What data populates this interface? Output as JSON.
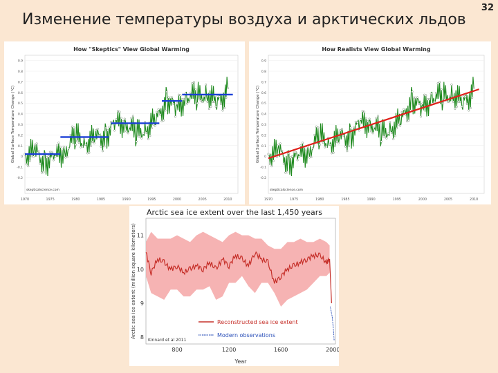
{
  "slide": {
    "title": "Изменение температуры воздуха и арктических льдов",
    "number": "32"
  },
  "colors": {
    "background": "#fbe7d2",
    "temperature_line": "#1f8a1f",
    "skeptic_steps": "#1a3fd6",
    "realist_trend": "#e0201a",
    "ice_line": "#c6302a",
    "ice_band": "#f4a6a6",
    "modern_obs": "#2a4fb8"
  },
  "chart_data": [
    {
      "type": "line",
      "title": "How \"Skeptics\" View Global Warming",
      "ylabel": "Global Surface Temperature Change (°C)",
      "xlim": [
        1970,
        2012
      ],
      "ylim": [
        -0.35,
        0.95
      ],
      "x_ticks": [
        "1970",
        "1975",
        "1980",
        "1985",
        "1990",
        "1995",
        "2000",
        "2005",
        "2010"
      ],
      "y_ticks": [
        "-0.2",
        "-0.1",
        "0",
        "0.1",
        "0.2",
        "0.3",
        "0.4",
        "0.5",
        "0.6",
        "0.7",
        "0.8",
        "0.9"
      ],
      "watermark": "skepticalscience.com",
      "x": [
        1970,
        1972,
        1974,
        1976,
        1978,
        1980,
        1982,
        1984,
        1986,
        1988,
        1990,
        1992,
        1994,
        1996,
        1998,
        2000,
        2002,
        2004,
        2006,
        2008,
        2010
      ],
      "series": [
        {
          "values": [
            0.02,
            0.03,
            -0.05,
            -0.02,
            0.07,
            0.18,
            0.14,
            0.16,
            0.2,
            0.3,
            0.32,
            0.2,
            0.28,
            0.33,
            0.55,
            0.42,
            0.58,
            0.55,
            0.6,
            0.48,
            0.64
          ]
        }
      ],
      "steps": [
        {
          "x0": 1970,
          "x1": 1977,
          "y": 0.02
        },
        {
          "x0": 1977,
          "x1": 1986.5,
          "y": 0.18
        },
        {
          "x0": 1987,
          "x1": 1996.5,
          "y": 0.31
        },
        {
          "x0": 1997,
          "x1": 2001,
          "y": 0.52
        },
        {
          "x0": 2001,
          "x1": 2011,
          "y": 0.58
        }
      ]
    },
    {
      "type": "line",
      "title": "How Realists View Global Warming",
      "ylabel": "Global Surface Temperature Change (°C)",
      "xlim": [
        1970,
        2012
      ],
      "ylim": [
        -0.35,
        0.95
      ],
      "x_ticks": [
        "1970",
        "1975",
        "1980",
        "1985",
        "1990",
        "1995",
        "2000",
        "2005",
        "2010"
      ],
      "y_ticks": [
        "-0.2",
        "-0.1",
        "0",
        "0.1",
        "0.2",
        "0.3",
        "0.4",
        "0.5",
        "0.6",
        "0.7",
        "0.8",
        "0.9"
      ],
      "watermark": "skepticalscience.com",
      "x": [
        1970,
        1972,
        1974,
        1976,
        1978,
        1980,
        1982,
        1984,
        1986,
        1988,
        1990,
        1992,
        1994,
        1996,
        1998,
        2000,
        2002,
        2004,
        2006,
        2008,
        2010
      ],
      "series": [
        {
          "values": [
            0.02,
            0.03,
            -0.05,
            -0.02,
            0.07,
            0.18,
            0.14,
            0.16,
            0.2,
            0.3,
            0.32,
            0.2,
            0.28,
            0.33,
            0.55,
            0.42,
            0.58,
            0.55,
            0.6,
            0.48,
            0.64
          ]
        }
      ],
      "trend": {
        "x0": 1970,
        "y0": -0.02,
        "x1": 2011,
        "y1": 0.63
      }
    },
    {
      "type": "line",
      "title": "Arctic sea ice extent over the last 1,450 years",
      "xlabel": "Year",
      "ylabel": "Arctic sea ice extent (million square kilometers)",
      "xlim": [
        560,
        2020
      ],
      "ylim": [
        7.8,
        11.5
      ],
      "x_ticks": [
        "800",
        "1200",
        "1600",
        "2000"
      ],
      "y_ticks": [
        "8",
        "9",
        "10",
        "11"
      ],
      "credit": "Kinnard et al 2011",
      "legend": [
        "Reconstructed sea ice extent",
        "Modern observations"
      ],
      "legend_position": "bottom-right",
      "x": [
        560,
        600,
        650,
        700,
        750,
        800,
        850,
        900,
        950,
        1000,
        1050,
        1100,
        1150,
        1200,
        1250,
        1300,
        1350,
        1400,
        1450,
        1500,
        1550,
        1600,
        1650,
        1700,
        1750,
        1800,
        1850,
        1900,
        1950,
        1975
      ],
      "series": [
        {
          "name": "Reconstructed sea ice extent",
          "values": [
            10.5,
            9.9,
            10.3,
            10.2,
            10.0,
            10.1,
            9.9,
            10.0,
            10.1,
            10.0,
            10.2,
            10.0,
            10.3,
            10.1,
            10.4,
            10.3,
            10.1,
            10.5,
            10.3,
            10.2,
            9.6,
            9.8,
            10.0,
            10.1,
            10.2,
            10.3,
            10.4,
            10.4,
            10.2,
            10.3
          ]
        },
        {
          "name": "Modern observations",
          "x": [
            1980,
            1985,
            1990,
            1995,
            2000,
            2005,
            2010
          ],
          "values": [
            8.9,
            8.8,
            8.7,
            8.6,
            8.4,
            8.2,
            7.9
          ]
        }
      ],
      "band_upper": [
        10.8,
        11.1,
        10.9,
        10.9,
        10.9,
        11.0,
        10.9,
        10.8,
        11.0,
        11.1,
        11.0,
        10.9,
        10.8,
        11.0,
        11.1,
        11.0,
        11.0,
        10.9,
        10.9,
        10.7,
        10.6,
        10.6,
        10.8,
        10.8,
        10.9,
        10.8,
        10.8,
        10.9,
        10.8,
        10.7
      ],
      "band_lower": [
        9.8,
        9.3,
        9.2,
        9.1,
        9.4,
        9.4,
        9.2,
        9.2,
        9.4,
        9.4,
        9.5,
        9.1,
        9.2,
        9.6,
        9.6,
        9.8,
        9.5,
        9.3,
        9.6,
        9.6,
        9.3,
        8.9,
        9.1,
        9.2,
        9.3,
        9.4,
        9.6,
        9.8,
        9.8,
        9.9
      ]
    }
  ]
}
